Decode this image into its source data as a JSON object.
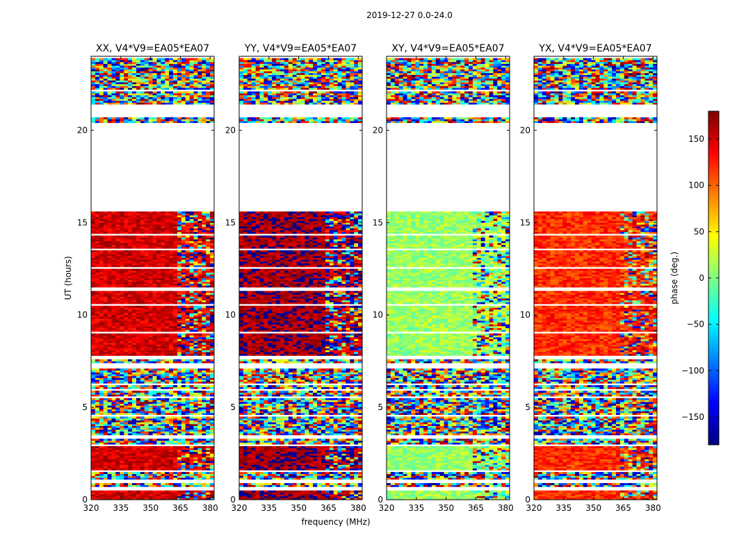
{
  "chart_data": {
    "type": "heatmap",
    "suptitle": "2019-12-27 0.0-24.0",
    "xlabel": "frequency (MHz)",
    "ylabel": "UT (hours)",
    "xlim": [
      320,
      382
    ],
    "ylim": [
      0,
      24
    ],
    "xticks": [
      320,
      335,
      350,
      365,
      380
    ],
    "yticks": [
      0,
      5,
      10,
      15,
      20
    ],
    "colorbar": {
      "label": "phase (deg.)",
      "range": [
        -180,
        180
      ],
      "ticks": [
        -150,
        -100,
        -50,
        0,
        50,
        100,
        150
      ],
      "tick_labels": [
        "−150",
        "−100",
        "−50",
        "0",
        "50",
        "100",
        "150"
      ],
      "colormap": [
        "#00007f",
        "#0000ff",
        "#007fff",
        "#00ffff",
        "#7fff7f",
        "#ffff00",
        "#ff7f00",
        "#ff0000",
        "#7f0000"
      ]
    },
    "panels": [
      {
        "title": "XX, V4*V9=EA05*EA07",
        "dominant_phase_deg": 150
      },
      {
        "title": "YY, V4*V9=EA05*EA07",
        "dominant_phase_deg": 168
      },
      {
        "title": "XY, V4*V9=EA05*EA07",
        "dominant_phase_deg": 10
      },
      {
        "title": "YX, V4*V9=EA05*EA07",
        "dominant_phase_deg": 120
      }
    ],
    "data_rows_hours": [
      [
        0.0,
        0.55
      ],
      [
        0.7,
        0.95
      ],
      [
        1.05,
        1.5
      ],
      [
        1.6,
        2.95
      ],
      [
        3.05,
        3.35
      ],
      [
        3.5,
        4.5
      ],
      [
        4.6,
        5.5
      ],
      [
        5.6,
        5.85
      ],
      [
        5.95,
        6.2
      ],
      [
        6.3,
        7.1
      ],
      [
        7.4,
        7.6
      ],
      [
        7.75,
        8.95
      ],
      [
        9.1,
        10.45
      ],
      [
        10.6,
        11.3
      ],
      [
        11.45,
        12.45
      ],
      [
        12.6,
        13.5
      ],
      [
        13.6,
        14.3
      ],
      [
        14.4,
        15.6
      ],
      [
        20.45,
        20.7
      ],
      [
        21.45,
        22.1
      ],
      [
        22.25,
        23.9
      ]
    ],
    "high_phase_rows_hours": [
      [
        0.0,
        0.55
      ],
      [
        1.6,
        2.95
      ],
      [
        7.75,
        8.95
      ],
      [
        9.1,
        10.45
      ],
      [
        10.6,
        11.3
      ],
      [
        11.45,
        12.45
      ],
      [
        12.6,
        13.5
      ],
      [
        13.6,
        14.3
      ],
      [
        14.4,
        15.6
      ]
    ]
  }
}
